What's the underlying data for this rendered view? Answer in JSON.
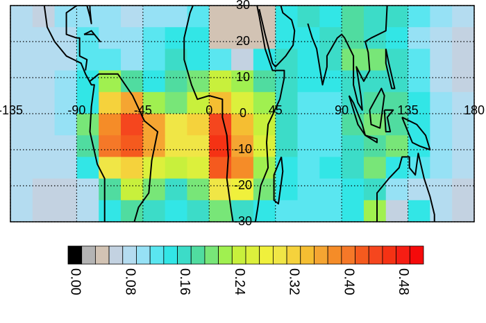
{
  "map_data": {
    "xlim": [
      -135,
      180
    ],
    "ylim": [
      -30,
      30
    ],
    "lon_ticks": [
      -135,
      -90,
      -45,
      0,
      45,
      90,
      135,
      180
    ],
    "lat_ticks": [
      30,
      20,
      10,
      0,
      -10,
      -20,
      -30
    ],
    "grid": {
      "lons": [
        -127.5,
        -112.5,
        -97.5,
        -82.5,
        -67.5,
        -52.5,
        -37.5,
        -22.5,
        -7.5,
        7.5,
        22.5,
        37.5,
        52.5,
        67.5,
        82.5,
        97.5,
        112.5,
        127.5,
        142.5,
        157.5,
        172.5
      ],
      "lats": [
        27,
        21,
        15,
        9,
        3,
        -3,
        -9,
        -15,
        -21,
        -27
      ],
      "values": [
        [
          0.08,
          0.06,
          0.1,
          0.1,
          0.1,
          0.08,
          0.1,
          0.1,
          0.12,
          0.04,
          0.04,
          0.04,
          0.14,
          0.16,
          0.14,
          0.18,
          0.16,
          0.16,
          0.12,
          0.1,
          0.08
        ],
        [
          0.08,
          0.08,
          0.08,
          0.12,
          0.1,
          0.1,
          0.12,
          0.14,
          0.14,
          0.04,
          0.04,
          0.04,
          0.14,
          0.14,
          0.16,
          0.18,
          0.16,
          0.14,
          0.1,
          0.08,
          0.06
        ],
        [
          0.08,
          0.08,
          0.08,
          0.12,
          0.12,
          0.1,
          0.12,
          0.16,
          0.14,
          0.12,
          0.06,
          0.14,
          0.16,
          0.14,
          0.16,
          0.2,
          0.2,
          0.16,
          0.12,
          0.08,
          0.06
        ],
        [
          0.08,
          0.08,
          0.1,
          0.14,
          0.22,
          0.18,
          0.14,
          0.18,
          0.2,
          0.24,
          0.22,
          0.18,
          0.16,
          0.14,
          0.14,
          0.16,
          0.16,
          0.16,
          0.12,
          0.08,
          0.06
        ],
        [
          0.08,
          0.08,
          0.1,
          0.14,
          0.32,
          0.36,
          0.22,
          0.2,
          0.24,
          0.34,
          0.26,
          0.22,
          0.16,
          0.12,
          0.12,
          0.16,
          0.18,
          0.18,
          0.14,
          0.1,
          0.08
        ],
        [
          0.08,
          0.08,
          0.1,
          0.2,
          0.38,
          0.44,
          0.36,
          0.3,
          0.32,
          0.44,
          0.34,
          0.24,
          0.16,
          0.12,
          0.12,
          0.18,
          0.2,
          0.18,
          0.14,
          0.1,
          0.08
        ],
        [
          0.08,
          0.08,
          0.08,
          0.18,
          0.4,
          0.42,
          0.36,
          0.3,
          0.3,
          0.46,
          0.36,
          0.26,
          0.16,
          0.12,
          0.12,
          0.16,
          0.18,
          0.2,
          0.14,
          0.1,
          0.08
        ],
        [
          0.08,
          0.08,
          0.08,
          0.14,
          0.3,
          0.32,
          0.26,
          0.24,
          0.26,
          0.42,
          0.38,
          0.22,
          0.14,
          0.12,
          0.14,
          0.16,
          0.2,
          0.14,
          0.12,
          0.1,
          0.08
        ],
        [
          0.08,
          0.06,
          0.06,
          0.08,
          0.18,
          0.24,
          0.2,
          0.16,
          0.2,
          0.3,
          0.28,
          0.2,
          0.14,
          0.12,
          0.12,
          0.14,
          0.16,
          0.1,
          0.08,
          0.08,
          0.06
        ],
        [
          0.08,
          0.06,
          0.06,
          0.08,
          0.14,
          0.18,
          0.16,
          0.14,
          0.16,
          0.2,
          0.16,
          0.14,
          0.12,
          0.12,
          0.12,
          0.14,
          0.22,
          0.06,
          0.14,
          0.08,
          0.06
        ]
      ]
    },
    "colorbar": {
      "levels": [
        0,
        0.02,
        0.04,
        0.06,
        0.08,
        0.1,
        0.12,
        0.14,
        0.16,
        0.18,
        0.2,
        0.22,
        0.24,
        0.26,
        0.28,
        0.3,
        0.32,
        0.34,
        0.36,
        0.38,
        0.4,
        0.42,
        0.44,
        0.46,
        0.48,
        0.5
      ],
      "colors": [
        "#000000",
        "#b4b4b4",
        "#d2c3b4",
        "#c3d2e1",
        "#b4dcf0",
        "#96e1f5",
        "#5ae6f0",
        "#32e6e6",
        "#3cdcc8",
        "#50dca0",
        "#78e678",
        "#a0f050",
        "#c8f03c",
        "#dcf03c",
        "#f0f03c",
        "#f0e646",
        "#f5d23c",
        "#f5be32",
        "#f5a532",
        "#f58c28",
        "#f57828",
        "#f55a1e",
        "#f5461e",
        "#f53214",
        "#f51e14",
        "#f50a0a"
      ],
      "ticks": [
        {
          "value": 0,
          "label": "0.00"
        },
        {
          "value": 0.08,
          "label": "0.08"
        },
        {
          "value": 0.16,
          "label": "0.16"
        },
        {
          "value": 0.24,
          "label": "0.24"
        },
        {
          "value": 0.32,
          "label": "0.32"
        },
        {
          "value": 0.4,
          "label": "0.40"
        },
        {
          "value": 0.48,
          "label": "0.48"
        }
      ]
    }
  }
}
